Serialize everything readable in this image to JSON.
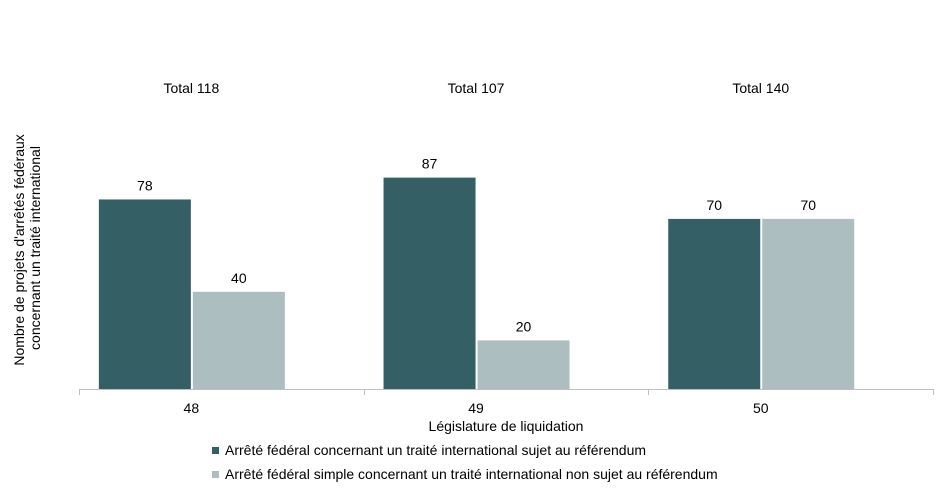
{
  "chart_data": {
    "type": "bar",
    "categories": [
      "48",
      "49",
      "50"
    ],
    "totals": [
      "Total 118",
      "Total 107",
      "Total 140"
    ],
    "series": [
      {
        "name": "Arrêté fédéral concernant un traité international sujet au référendum",
        "values": [
          78,
          87,
          70
        ],
        "color": "#346065"
      },
      {
        "name": "Arrêté fédéral simple concernant un traité international non sujet au référendum",
        "values": [
          40,
          20,
          70
        ],
        "color": "#adbec0"
      }
    ],
    "xlabel": "Législature de liquidation",
    "ylabel_lines": [
      "Nombre de projets d'arrêtés fédéraux",
      "concernant un traité international"
    ],
    "ylim": [
      0,
      100
    ],
    "grid": false,
    "legend_position": "bottom"
  }
}
